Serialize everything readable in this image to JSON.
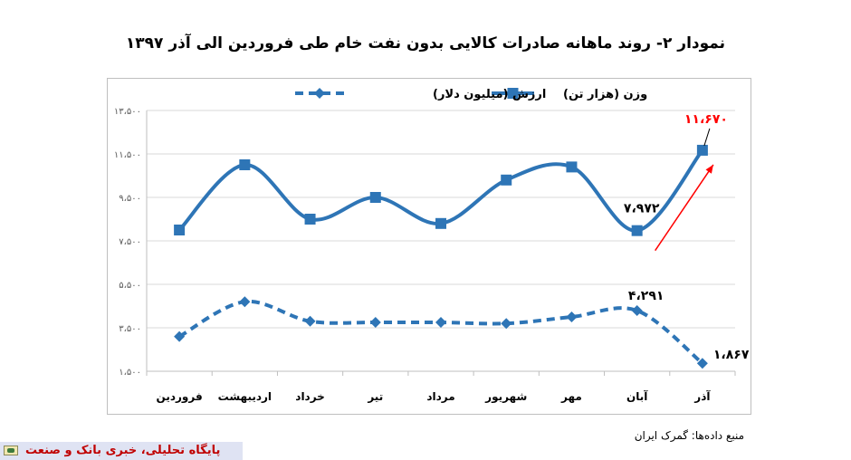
{
  "title": "نمودار ۲- روند ماهانه صادرات کالایی بدون نفت خام طی فروردین الی آذر ۱۳۹۷",
  "source": "منبع داده‌ها: گمرک ایران",
  "footer": {
    "text": "پایگاه تحلیلی، خبری بانک و صنعت"
  },
  "colors": {
    "series": "#2e75b6",
    "highlight": "#ff0000",
    "grid": "#d9d9d9"
  },
  "chart_data": {
    "type": "line",
    "categories": [
      "فروردین",
      "اردیبهشت",
      "خرداد",
      "تیر",
      "مرداد",
      "شهریور",
      "مهر",
      "آبان",
      "آذر"
    ],
    "ylim": [
      1500,
      13500
    ],
    "yticks": [
      1500,
      3500,
      5500,
      7500,
      9500,
      11500,
      13500
    ],
    "ytick_labels": [
      "۱،۵۰۰",
      "۳،۵۰۰",
      "۵،۵۰۰",
      "۷،۵۰۰",
      "۹،۵۰۰",
      "۱۱،۵۰۰",
      "۱۳،۵۰۰"
    ],
    "grid": "horizontal",
    "legend_position": "top",
    "series": [
      {
        "name": "وزن (هزار تن)",
        "style": "solid",
        "marker": "square",
        "values": [
          8000,
          11000,
          8500,
          9500,
          8300,
          10300,
          10900,
          7972,
          11670
        ]
      },
      {
        "name": "ارزش (میلیون دلار)",
        "style": "dashed",
        "marker": "diamond",
        "values": [
          3100,
          4700,
          3800,
          3750,
          3750,
          3700,
          4000,
          4291,
          1867
        ]
      }
    ],
    "annotations": [
      {
        "series": 0,
        "index": 7,
        "text": "۷،۹۷۲",
        "color": "#000000"
      },
      {
        "series": 0,
        "index": 8,
        "text": "۱۱،۶۷۰",
        "color": "#ff0000"
      },
      {
        "series": 1,
        "index": 7,
        "text": "۴،۲۹۱",
        "color": "#000000"
      },
      {
        "series": 1,
        "index": 8,
        "text": "۱،۸۶۷",
        "color": "#000000"
      }
    ]
  }
}
